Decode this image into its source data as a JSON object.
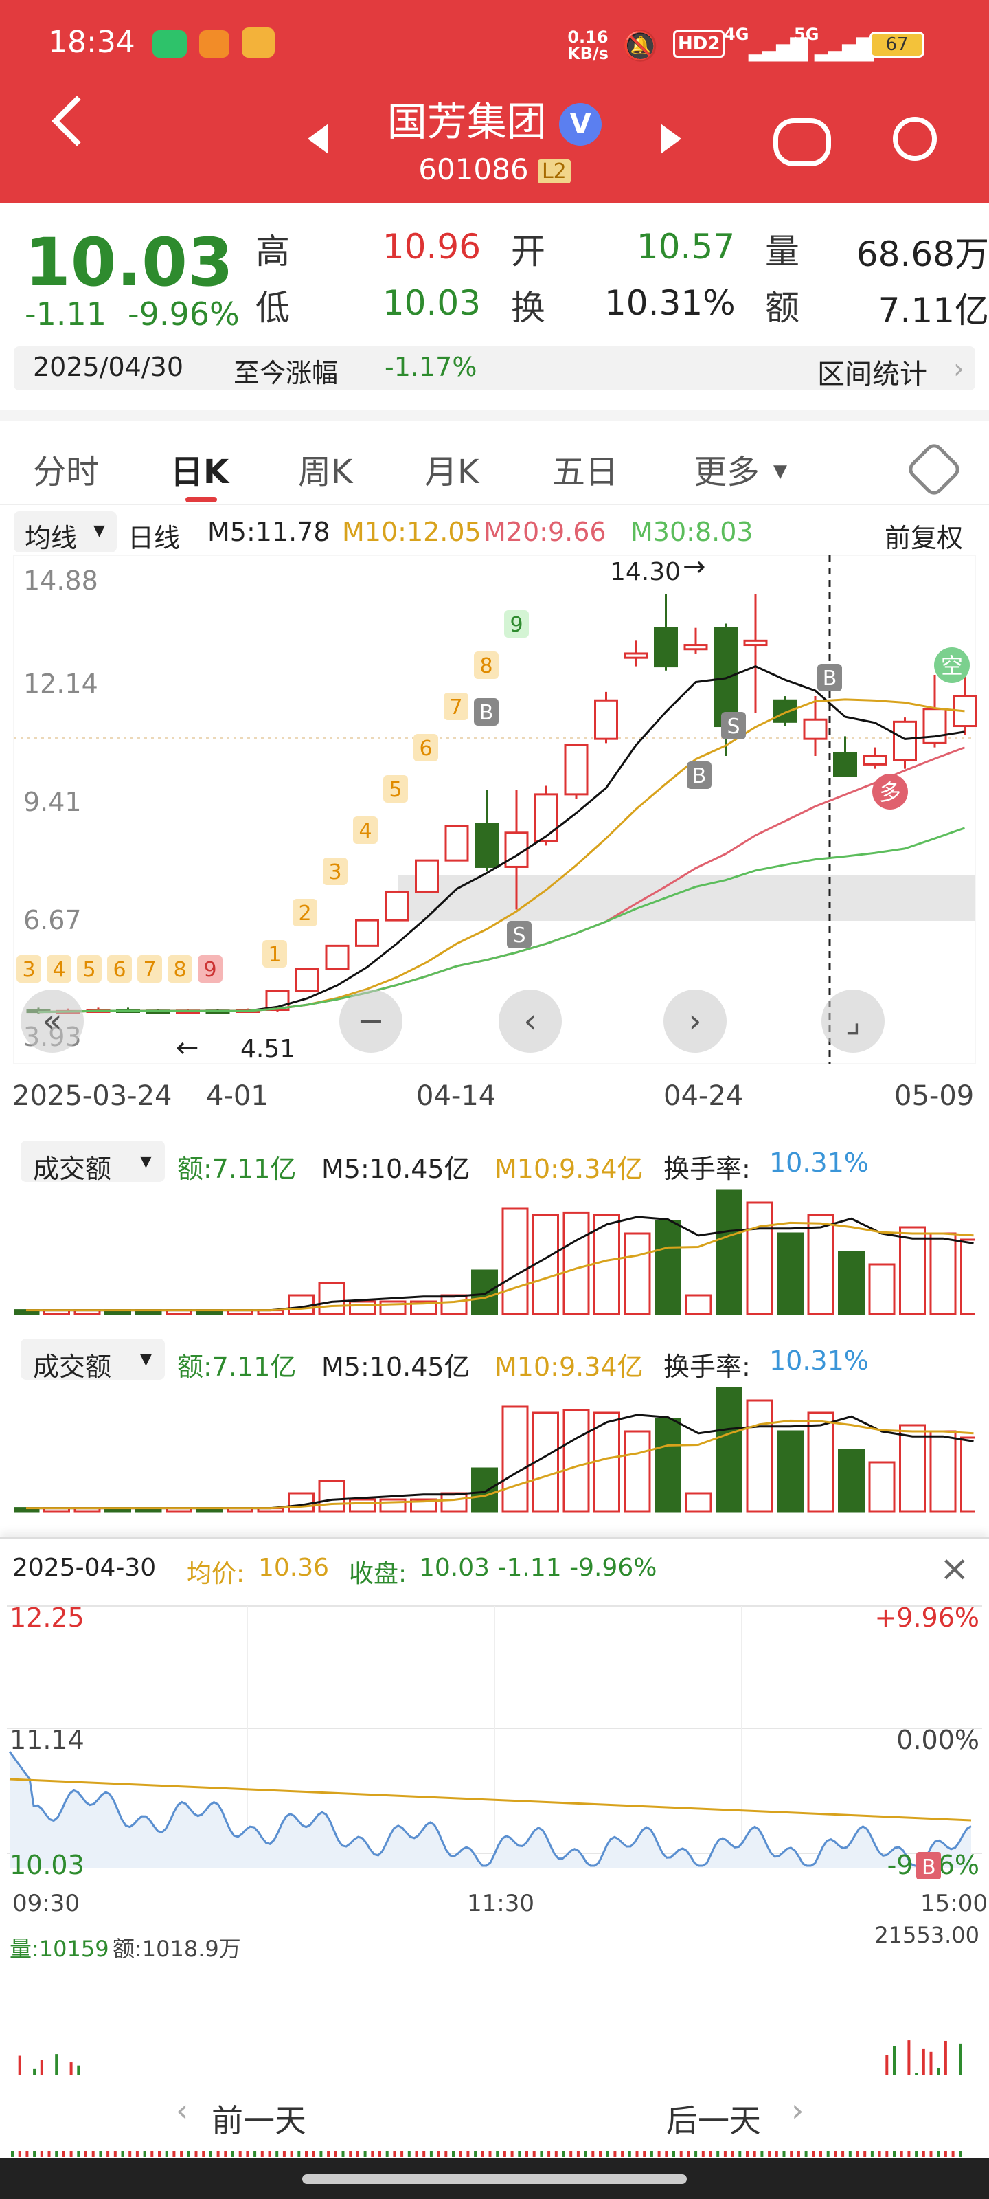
{
  "status": {
    "time": "18:34",
    "net_speed_top": "0.16",
    "net_speed_bottom": "KB/s",
    "hd": "HD2",
    "net1": "4G",
    "net2": "5G",
    "battery": "67"
  },
  "header": {
    "title": "国芳集团",
    "code": "601086",
    "level": "L2"
  },
  "quote": {
    "price": "10.03",
    "change": "-1.11",
    "change_pct": "-9.96%",
    "high_label": "高",
    "high": "10.96",
    "open_label": "开",
    "open": "10.57",
    "vol_label": "量",
    "vol": "68.68万",
    "low_label": "低",
    "low": "10.03",
    "turn_label": "换",
    "turn": "10.31%",
    "amt_label": "额",
    "amt": "7.11亿",
    "date": "2025/04/30",
    "gain_label": "至今涨幅",
    "gain": "-1.17%",
    "stats": "区间统计"
  },
  "tabs": [
    "分时",
    "日K",
    "周K",
    "月K",
    "五日",
    "更多"
  ],
  "ma": {
    "type": "均线",
    "period": "日线",
    "m5": "M5:11.78",
    "m10": "M10:12.05",
    "m20": "M20:9.66",
    "m30": "M30:8.03",
    "adj": "前复权"
  },
  "kchart": {
    "y_labels": [
      "14.88",
      "12.14",
      "9.41",
      "6.67",
      "3.93"
    ],
    "x_labels": [
      "2025-03-24",
      "4-01",
      "04-14",
      "04-24",
      "05-09"
    ],
    "high_mark": "14.30",
    "low_mark": "4.51",
    "nine_left": [
      "3",
      "4",
      "5",
      "6",
      "7",
      "8",
      "9"
    ],
    "nine_rise": [
      "1",
      "2",
      "3",
      "4",
      "5",
      "6",
      "7",
      "8",
      "9"
    ],
    "sig_b": "B",
    "sig_s": "S",
    "kong": "空",
    "duo": "多",
    "candles": [
      {
        "o": 4.55,
        "c": 4.5,
        "h": 4.6,
        "l": 4.45
      },
      {
        "o": 4.5,
        "c": 4.52,
        "h": 4.58,
        "l": 4.47
      },
      {
        "o": 4.52,
        "c": 4.55,
        "h": 4.6,
        "l": 4.5
      },
      {
        "o": 4.55,
        "c": 4.53,
        "h": 4.6,
        "l": 4.5
      },
      {
        "o": 4.53,
        "c": 4.5,
        "h": 4.57,
        "l": 4.47
      },
      {
        "o": 4.5,
        "c": 4.53,
        "h": 4.57,
        "l": 4.48
      },
      {
        "o": 4.53,
        "c": 4.51,
        "h": 4.56,
        "l": 4.48
      },
      {
        "o": 4.51,
        "c": 4.55,
        "h": 4.58,
        "l": 4.49
      },
      {
        "o": 4.55,
        "c": 5.0,
        "h": 5.0,
        "l": 4.51
      },
      {
        "o": 5.0,
        "c": 5.5,
        "h": 5.5,
        "l": 5.0
      },
      {
        "o": 5.5,
        "c": 6.05,
        "h": 6.05,
        "l": 5.5
      },
      {
        "o": 6.05,
        "c": 6.65,
        "h": 6.65,
        "l": 6.05
      },
      {
        "o": 6.65,
        "c": 7.32,
        "h": 7.32,
        "l": 6.65
      },
      {
        "o": 7.32,
        "c": 8.05,
        "h": 8.05,
        "l": 7.32
      },
      {
        "o": 8.05,
        "c": 8.85,
        "h": 8.85,
        "l": 8.05
      },
      {
        "o": 8.9,
        "c": 7.9,
        "h": 9.7,
        "l": 7.8
      },
      {
        "o": 7.9,
        "c": 8.7,
        "h": 9.7,
        "l": 6.9
      },
      {
        "o": 8.5,
        "c": 9.6,
        "h": 9.8,
        "l": 8.4
      },
      {
        "o": 9.6,
        "c": 10.75,
        "h": 10.75,
        "l": 9.5
      },
      {
        "o": 10.9,
        "c": 11.8,
        "h": 12.0,
        "l": 10.8
      },
      {
        "o": 12.8,
        "c": 12.9,
        "h": 13.2,
        "l": 12.6
      },
      {
        "o": 13.5,
        "c": 12.6,
        "h": 14.3,
        "l": 12.5
      },
      {
        "o": 13.0,
        "c": 13.1,
        "h": 13.5,
        "l": 12.9
      },
      {
        "o": 13.5,
        "c": 11.2,
        "h": 13.6,
        "l": 10.5
      },
      {
        "o": 13.1,
        "c": 13.2,
        "h": 14.3,
        "l": 11.5
      },
      {
        "o": 11.8,
        "c": 11.3,
        "h": 11.9,
        "l": 11.2
      },
      {
        "o": 10.9,
        "c": 11.35,
        "h": 11.9,
        "l": 10.5
      },
      {
        "o": 10.57,
        "c": 10.03,
        "h": 10.96,
        "l": 10.03
      },
      {
        "o": 10.3,
        "c": 10.5,
        "h": 10.7,
        "l": 10.2
      },
      {
        "o": 10.4,
        "c": 11.3,
        "h": 11.4,
        "l": 10.2
      },
      {
        "o": 10.8,
        "c": 11.6,
        "h": 12.4,
        "l": 10.7
      },
      {
        "o": 11.2,
        "c": 11.9,
        "h": 12.6,
        "l": 11.0
      }
    ]
  },
  "vol1": {
    "label": "成交额",
    "amt": "额:7.11亿",
    "m5": "M5:10.45亿",
    "m10": "M10:9.34亿",
    "turn_label": "换手率:",
    "turn": "10.31%"
  },
  "vol2": {
    "label": "成交额",
    "amt": "额:7.11亿",
    "m5": "M5:10.45亿",
    "m10": "M10:9.34亿",
    "turn_label": "换手率:",
    "turn": "10.31%"
  },
  "vol_values": [
    0.03,
    0.03,
    0.03,
    0.03,
    0.03,
    0.03,
    0.03,
    0.03,
    0.03,
    0.15,
    0.25,
    0.1,
    0.1,
    0.1,
    0.15,
    0.35,
    0.85,
    0.8,
    0.82,
    0.8,
    0.65,
    0.75,
    0.15,
    1.0,
    0.9,
    0.65,
    0.8,
    0.5,
    0.4,
    0.7,
    0.65,
    0.6
  ],
  "intraday": {
    "date": "2025-04-30",
    "avg_label": "均价:",
    "avg": "10.36",
    "close_label": "收盘:",
    "close": "10.03 -1.11 -9.96%",
    "y_top": "12.25",
    "y_mid": "11.14",
    "y_bot": "10.03",
    "pct_top": "+9.96%",
    "pct_mid": "0.00%",
    "pct_bot": "-9.96%",
    "t_start": "09:30",
    "t_mid": "11:30",
    "t_end": "15:00",
    "vol_label": "量:10159",
    "amt_label": "额:1018.9万",
    "vol_max": "21553.00",
    "b_mark": "B"
  },
  "bottom": {
    "prev": "前一天",
    "next": "后一天"
  }
}
